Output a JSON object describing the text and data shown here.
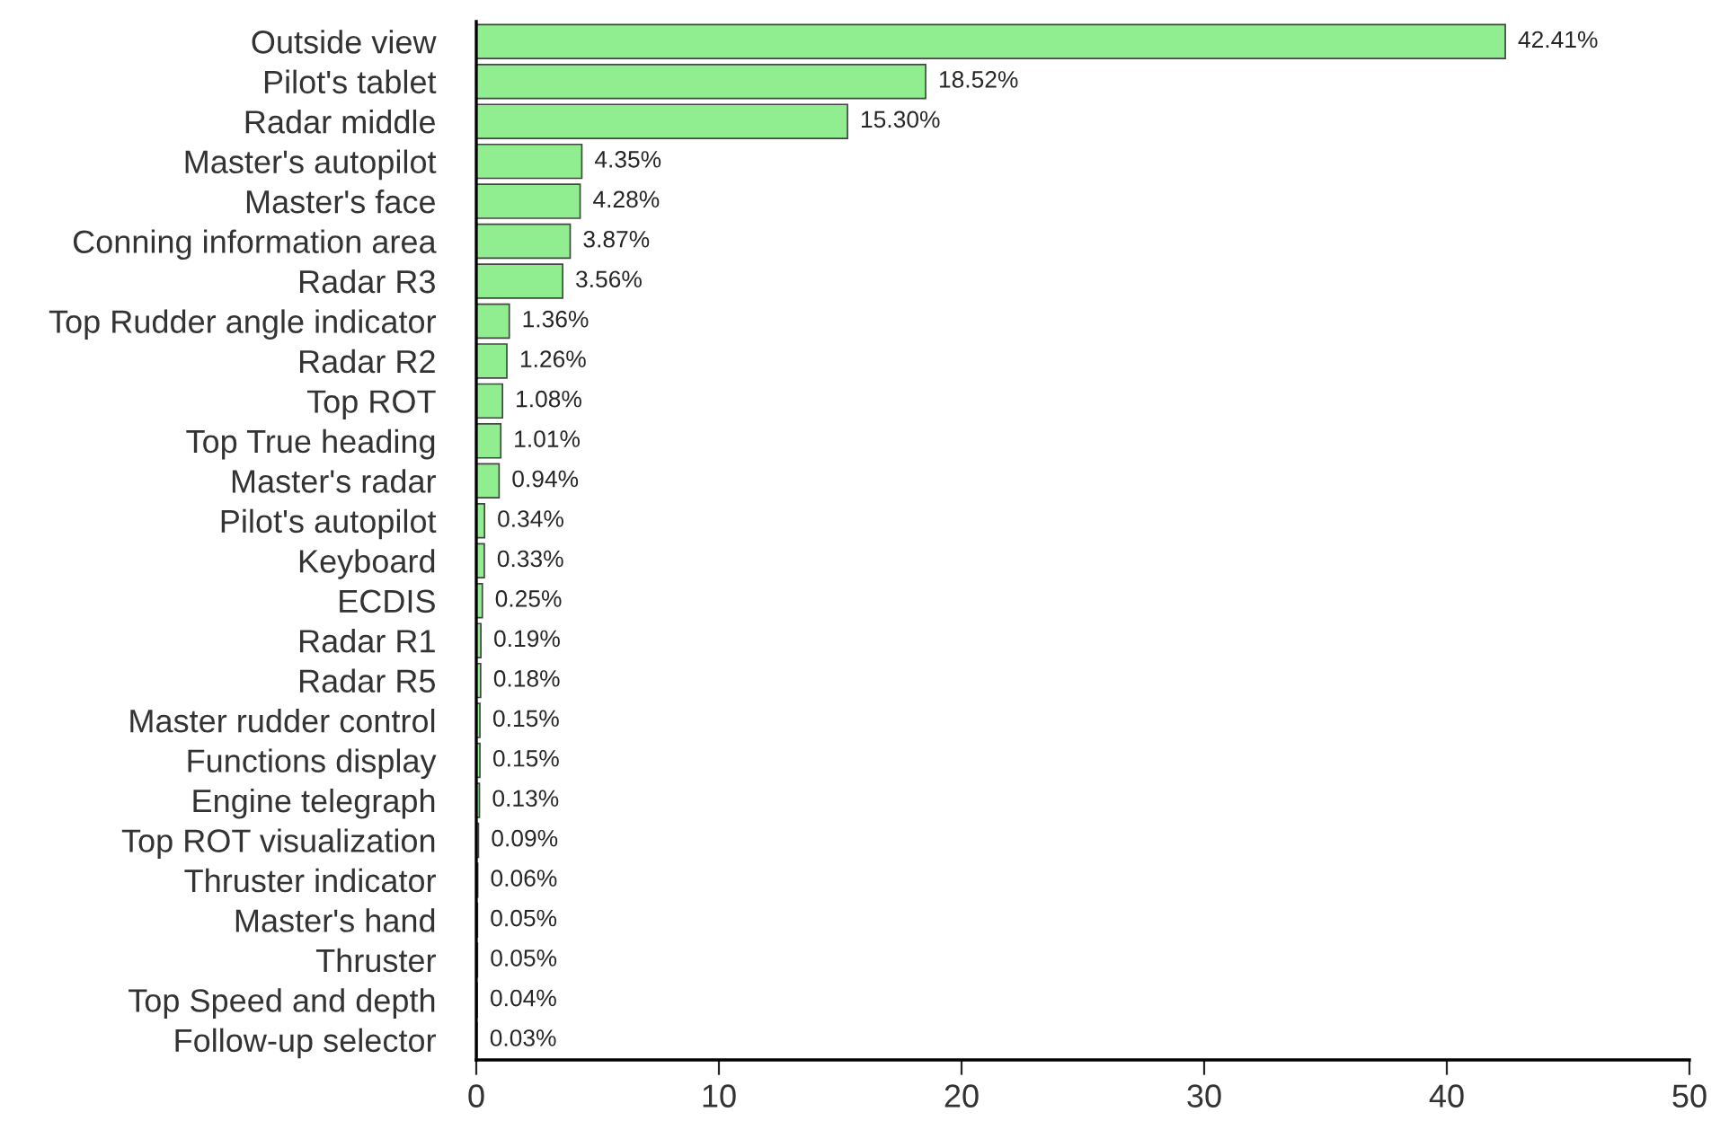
{
  "chart_data": {
    "type": "bar",
    "orientation": "horizontal",
    "categories": [
      "Outside view",
      "Pilot's tablet",
      "Radar middle",
      "Master's autopilot",
      "Master's face",
      "Conning information area",
      "Radar R3",
      "Top Rudder angle indicator",
      "Radar R2",
      "Top ROT",
      "Top True heading",
      "Master's radar",
      "Pilot's autopilot",
      "Keyboard",
      "ECDIS",
      "Radar R1",
      "Radar R5",
      "Master rudder control",
      "Functions display",
      "Engine telegraph",
      "Top ROT visualization",
      "Thruster indicator",
      "Master's hand",
      "Thruster",
      "Top Speed and depth",
      "Follow-up selector"
    ],
    "values": [
      42.41,
      18.52,
      15.3,
      4.35,
      4.28,
      3.87,
      3.56,
      1.36,
      1.26,
      1.08,
      1.01,
      0.94,
      0.34,
      0.33,
      0.25,
      0.19,
      0.18,
      0.15,
      0.15,
      0.13,
      0.09,
      0.06,
      0.05,
      0.05,
      0.04,
      0.03
    ],
    "value_labels": [
      "42.41%",
      "18.52%",
      "15.30%",
      "4.35%",
      "4.28%",
      "3.87%",
      "3.56%",
      "1.36%",
      "1.26%",
      "1.08%",
      "1.01%",
      "0.94%",
      "0.34%",
      "0.33%",
      "0.25%",
      "0.19%",
      "0.18%",
      "0.15%",
      "0.15%",
      "0.13%",
      "0.09%",
      "0.06%",
      "0.05%",
      "0.05%",
      "0.04%",
      "0.03%"
    ],
    "color": "#90ee90",
    "xlim": [
      0,
      50
    ],
    "xticks": [
      0,
      10,
      20,
      30,
      40,
      50
    ],
    "grid": false,
    "legend": false
  }
}
